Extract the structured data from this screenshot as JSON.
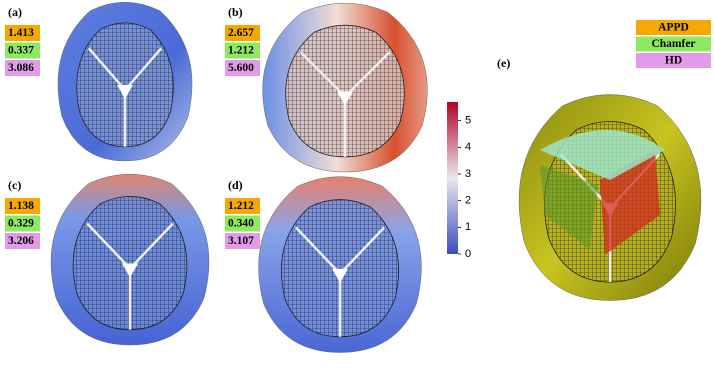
{
  "panels": [
    {
      "label": "(a)",
      "metrics": [
        "1.413",
        "0.337",
        "3.086"
      ]
    },
    {
      "label": "(b)",
      "metrics": [
        "2.657",
        "1.212",
        "5.600"
      ]
    },
    {
      "label": "(c)",
      "metrics": [
        "1.138",
        "0.329",
        "3.206"
      ]
    },
    {
      "label": "(d)",
      "metrics": [
        "1.212",
        "0.340",
        "3.107"
      ]
    }
  ],
  "colorbar": {
    "ticks": [
      0,
      1,
      2,
      3,
      4,
      5
    ],
    "lim": [
      0,
      5.7
    ]
  },
  "legend": {
    "label": "(e)",
    "items": [
      {
        "name": "APPD",
        "color": "#f5a800"
      },
      {
        "name": "Chamfer",
        "color": "#8ee860"
      },
      {
        "name": "HD",
        "color": "#e39ae8"
      }
    ]
  }
}
